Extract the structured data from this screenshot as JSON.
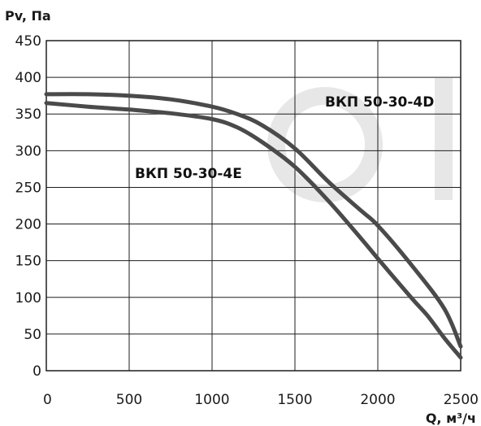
{
  "chart_data": {
    "type": "line",
    "ylabel": "Pv, Па",
    "xlabel": "Q, м³/ч",
    "xlim": [
      0,
      2500
    ],
    "ylim": [
      0,
      450
    ],
    "xticks": [
      "0",
      "500",
      "1000",
      "1500",
      "2000",
      "2500"
    ],
    "yticks": [
      "0",
      "50",
      "100",
      "150",
      "200",
      "250",
      "300",
      "350",
      "400",
      "450"
    ],
    "grid": true,
    "series": [
      {
        "name": "ВКП 50-30-4D",
        "x": [
          0,
          250,
          500,
          750,
          1000,
          1150,
          1300,
          1500,
          1700,
          1900,
          2000,
          2200,
          2400,
          2500
        ],
        "y": [
          377,
          377,
          375,
          370,
          360,
          350,
          335,
          303,
          258,
          218,
          198,
          145,
          85,
          33
        ]
      },
      {
        "name": "ВКП 50-30-4E",
        "x": [
          0,
          250,
          500,
          750,
          1000,
          1150,
          1300,
          1500,
          1700,
          1900,
          2000,
          2200,
          2300,
          2400,
          2500
        ],
        "y": [
          365,
          360,
          356,
          351,
          343,
          332,
          312,
          278,
          232,
          180,
          153,
          100,
          75,
          45,
          18
        ]
      }
    ],
    "colors": {
      "curve": "#4a4a4a",
      "grid": "#1e1e1e",
      "watermark": "#e7e7e7"
    }
  }
}
